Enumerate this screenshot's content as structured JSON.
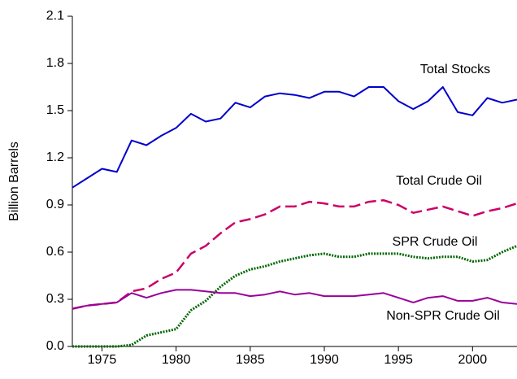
{
  "chart_data": {
    "type": "line",
    "ylabel": "Billion Barrels",
    "x": [
      1973,
      1974,
      1975,
      1976,
      1977,
      1978,
      1979,
      1980,
      1981,
      1982,
      1983,
      1984,
      1985,
      1986,
      1987,
      1988,
      1989,
      1990,
      1991,
      1992,
      1993,
      1994,
      1995,
      1996,
      1997,
      1998,
      1999,
      2000,
      2001,
      2002,
      2003
    ],
    "series": [
      {
        "name": "Total Stocks",
        "color": "#0000cc",
        "style": "solid",
        "values": [
          1.01,
          1.07,
          1.13,
          1.11,
          1.31,
          1.28,
          1.34,
          1.39,
          1.48,
          1.43,
          1.45,
          1.55,
          1.52,
          1.59,
          1.61,
          1.6,
          1.58,
          1.62,
          1.62,
          1.59,
          1.65,
          1.65,
          1.56,
          1.51,
          1.56,
          1.65,
          1.49,
          1.47,
          1.58,
          1.55,
          1.57
        ]
      },
      {
        "name": "Total Crude Oil",
        "color": "#cc0066",
        "style": "dashed",
        "values": [
          0.24,
          0.26,
          0.27,
          0.28,
          0.35,
          0.37,
          0.43,
          0.47,
          0.59,
          0.64,
          0.72,
          0.79,
          0.81,
          0.84,
          0.89,
          0.89,
          0.92,
          0.91,
          0.89,
          0.89,
          0.92,
          0.93,
          0.9,
          0.85,
          0.87,
          0.89,
          0.86,
          0.83,
          0.86,
          0.88,
          0.91
        ]
      },
      {
        "name": "SPR Crude Oil",
        "color": "#006600",
        "style": "dotted",
        "values": [
          0,
          0,
          0,
          0,
          0.01,
          0.07,
          0.09,
          0.11,
          0.23,
          0.29,
          0.38,
          0.45,
          0.49,
          0.51,
          0.54,
          0.56,
          0.58,
          0.59,
          0.57,
          0.57,
          0.59,
          0.59,
          0.59,
          0.57,
          0.56,
          0.57,
          0.57,
          0.54,
          0.55,
          0.6,
          0.64
        ]
      },
      {
        "name": "Non-SPR Crude Oil",
        "color": "#990099",
        "style": "solid",
        "values": [
          0.24,
          0.26,
          0.27,
          0.28,
          0.34,
          0.31,
          0.34,
          0.36,
          0.36,
          0.35,
          0.34,
          0.34,
          0.32,
          0.33,
          0.35,
          0.33,
          0.34,
          0.32,
          0.32,
          0.32,
          0.33,
          0.34,
          0.31,
          0.28,
          0.31,
          0.32,
          0.29,
          0.29,
          0.31,
          0.28,
          0.27
        ]
      }
    ],
    "xlim": [
      1973,
      2003
    ],
    "xticks": [
      1975,
      1980,
      1985,
      1990,
      1995,
      2000
    ],
    "ylim": [
      0,
      2.1
    ],
    "yticks": [
      {
        "value": 0,
        "label": "0.0"
      },
      0.3,
      0.6,
      0.9,
      1.2,
      1.5,
      1.8,
      2.1
    ]
  }
}
